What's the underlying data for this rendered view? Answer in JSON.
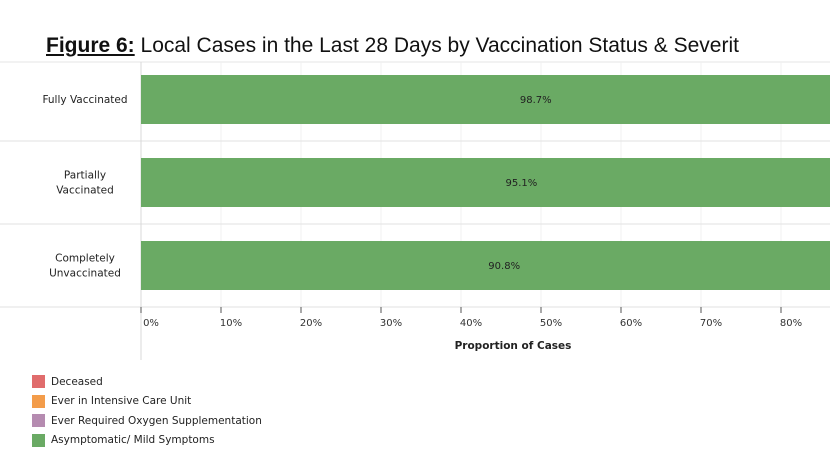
{
  "title": {
    "prefix": "Figure 6:",
    "text": " Local Cases in the Last 28 Days by Vaccination Status & Severit"
  },
  "chart_data": {
    "type": "bar",
    "orientation": "horizontal",
    "stacked": true,
    "categories": [
      "Fully Vaccinated",
      "Partially Vaccinated",
      "Completely Unvaccinated"
    ],
    "category_lines": [
      [
        "Fully Vaccinated"
      ],
      [
        "Partially",
        "Vaccinated"
      ],
      [
        "Completely",
        "Unvaccinated"
      ]
    ],
    "series": [
      {
        "name": "Asymptomatic/ Mild Symptoms",
        "color": "#6aaa64",
        "values": [
          98.7,
          95.1,
          90.8
        ],
        "labels": [
          "98.7%",
          "95.1%",
          "90.8%"
        ]
      }
    ],
    "xlabel": "Proportion of Cases",
    "xticks": [
      "0%",
      "10%",
      "20%",
      "30%",
      "40%",
      "50%",
      "60%",
      "70%",
      "80%"
    ],
    "xlim": [
      0,
      100
    ],
    "legend": [
      {
        "label": "Deceased",
        "color": "#e06c6c"
      },
      {
        "label": "Ever in Intensive Care Unit",
        "color": "#f39c4a"
      },
      {
        "label": "Ever Required Oxygen Supplementation",
        "color": "#b58bb0"
      },
      {
        "label": "Asymptomatic/ Mild Symptoms",
        "color": "#6aaa64"
      }
    ],
    "legend_position": "bottom-left",
    "grid": true
  }
}
